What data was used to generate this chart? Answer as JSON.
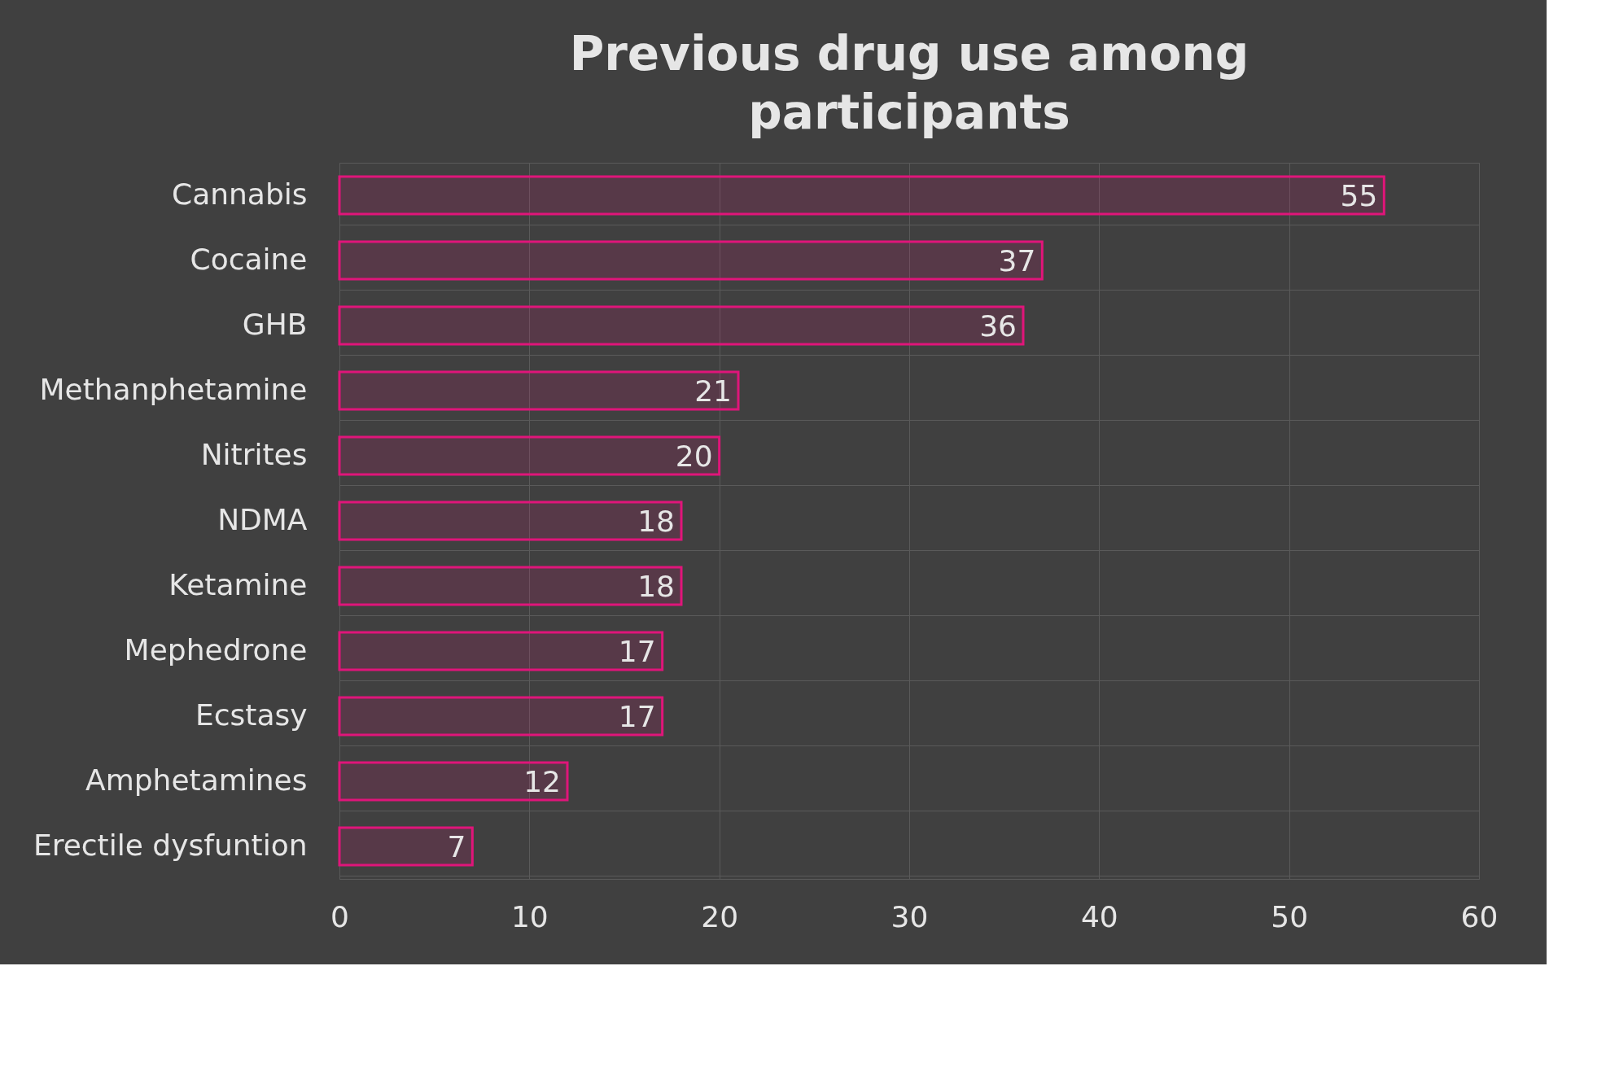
{
  "chart_data": {
    "type": "bar",
    "orientation": "horizontal",
    "title": "Previous drug use among participants",
    "categories": [
      "Cannabis",
      "Cocaine",
      "GHB",
      "Methanphetamine",
      "Nitrites",
      "NDMA",
      "Ketamine",
      "Mephedrone",
      "Ecstasy",
      "Amphetamines",
      "Erectile dysfuntion"
    ],
    "values": [
      55,
      37,
      36,
      21,
      20,
      18,
      18,
      17,
      17,
      12,
      7
    ],
    "color": "#e0157a",
    "xlim": [
      0,
      60
    ],
    "xticks": [
      0,
      10,
      20,
      30,
      40,
      50,
      60
    ],
    "grid": true,
    "data_labels": true
  }
}
